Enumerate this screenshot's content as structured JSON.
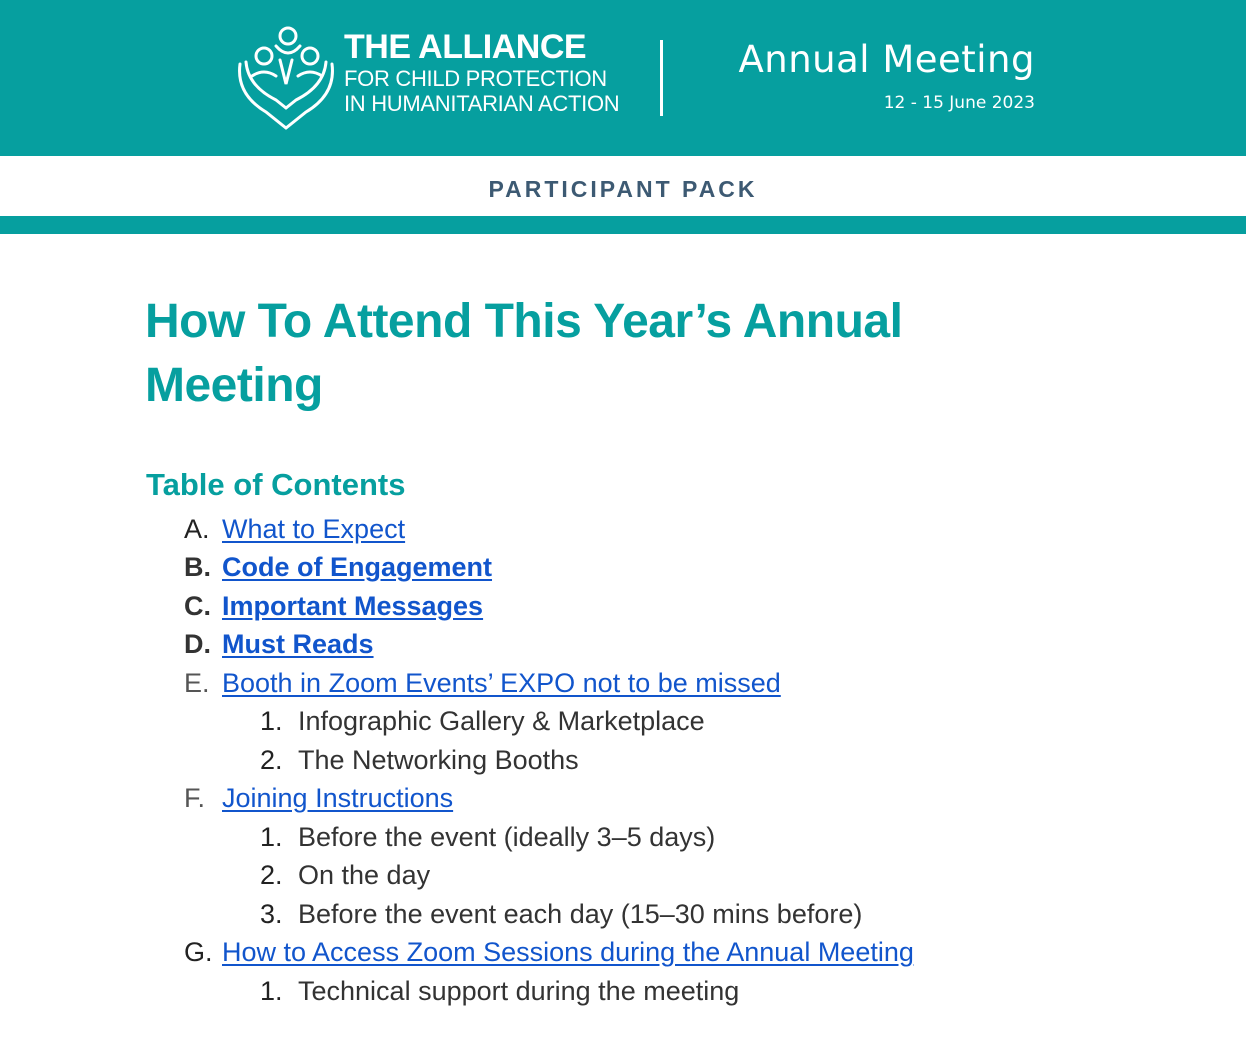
{
  "header": {
    "logo": {
      "line1": "THE ALLIANCE",
      "line2": "FOR CHILD PROTECTION",
      "line3": "IN HUMANITARIAN ACTION"
    },
    "meeting_title": "Annual Meeting",
    "meeting_date": "12 - 15 June 2023",
    "color": "#069f9f"
  },
  "subheader": "PARTICIPANT PACK",
  "title": "How To Attend This Year’s Annual Meeting",
  "toc": {
    "heading": "Table of Contents",
    "link_color": "#1155cc",
    "items": [
      {
        "label": "A.",
        "text": "What to Expect",
        "bold": false
      },
      {
        "label": "B.",
        "text": "Code of Engagement",
        "bold": true
      },
      {
        "label": "C.",
        "text": "Important Messages",
        "bold": true
      },
      {
        "label": "D.",
        "text": "Must Reads",
        "bold": true
      },
      {
        "label": "E.",
        "text": "Booth in Zoom Events’ EXPO not to be missed",
        "bold": false,
        "sub": [
          {
            "label": "1.",
            "text": "Infographic Gallery & Marketplace"
          },
          {
            "label": "2.",
            "text": "The Networking Booths"
          }
        ]
      },
      {
        "label": "F.",
        "text": "Joining Instructions",
        "bold": false,
        "sub": [
          {
            "label": "1.",
            "text": "Before the event (ideally 3–5 days)"
          },
          {
            "label": "2.",
            "text": "On the day"
          },
          {
            "label": "3.",
            "text": "Before the event each day (15–30 mins before)"
          }
        ]
      },
      {
        "label": "G.",
        "text": "How to Access Zoom Sessions during the Annual Meeting",
        "bold": false,
        "sub": [
          {
            "label": "1.",
            "text": "Technical support during the meeting"
          }
        ]
      }
    ]
  }
}
